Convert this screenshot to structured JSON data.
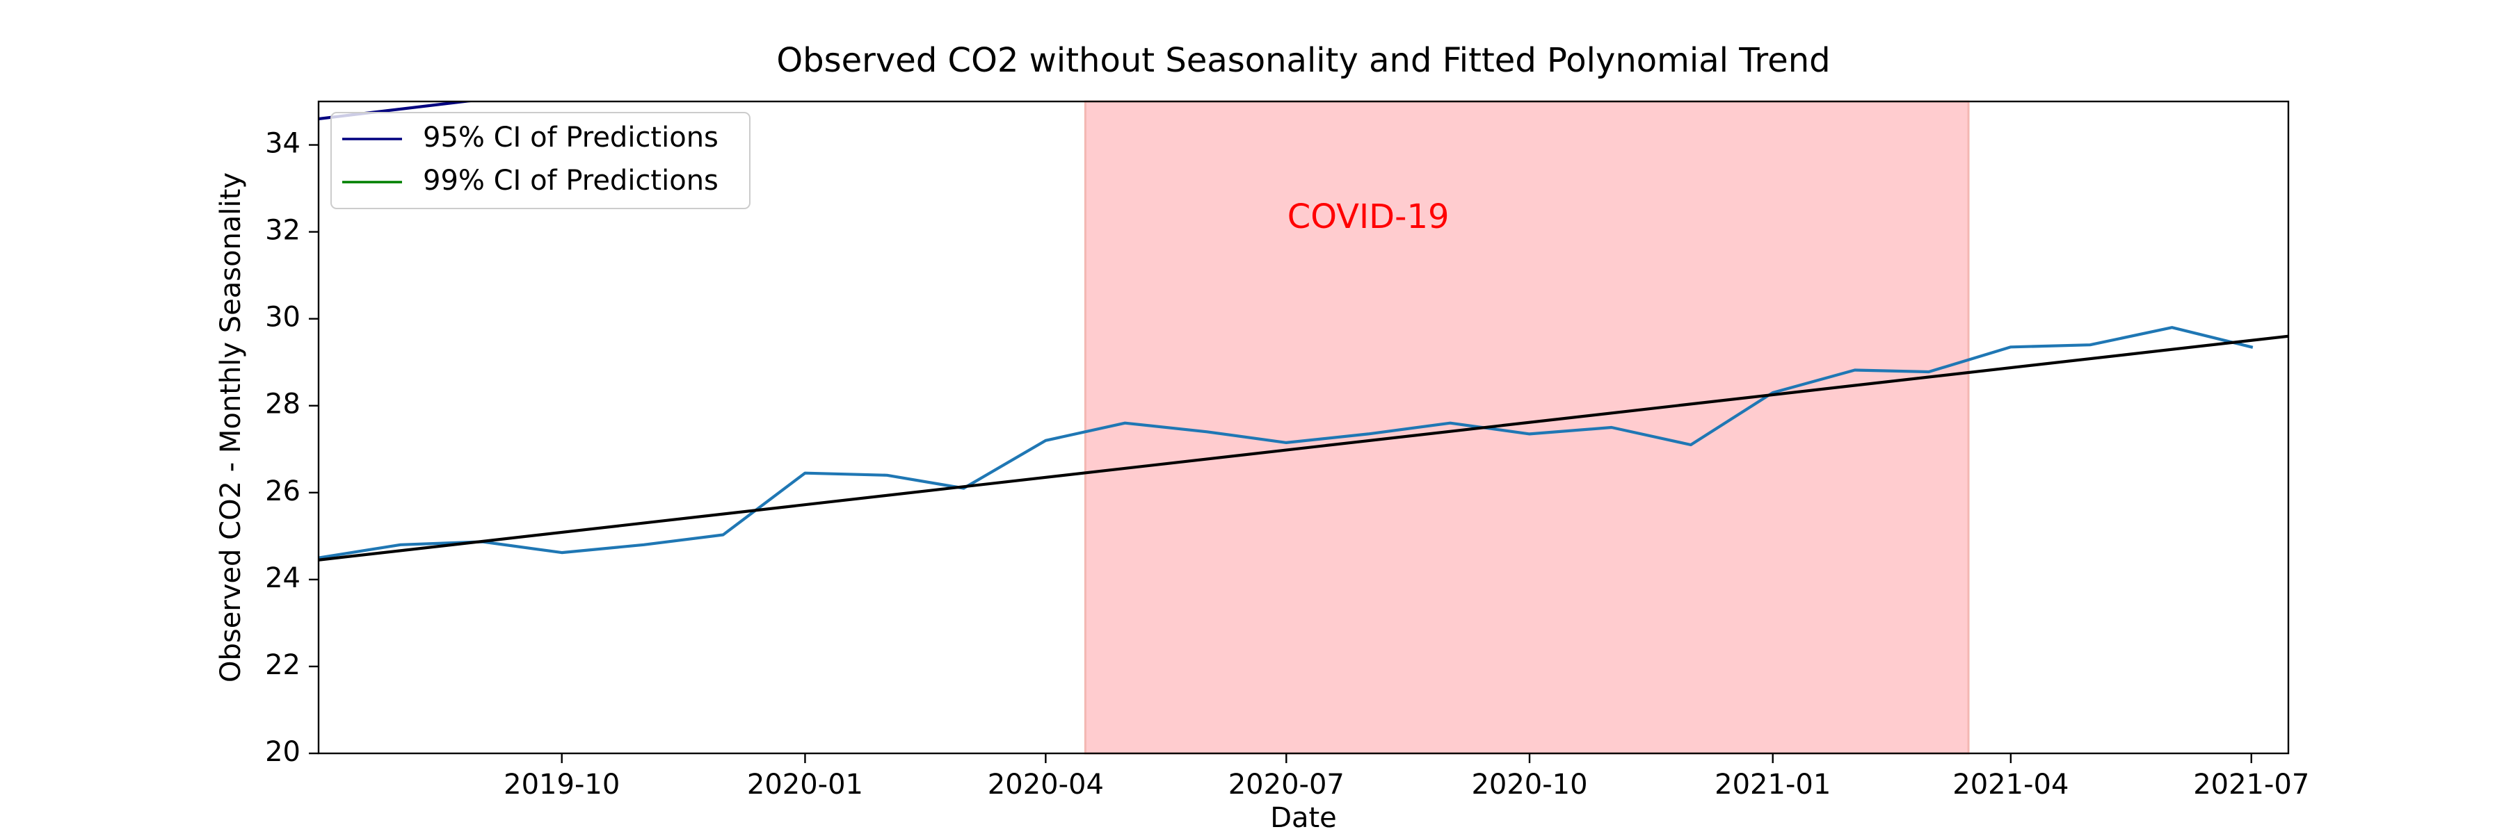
{
  "chart_data": {
    "type": "line",
    "title": "Observed CO2 without Seasonality and Fitted Polynomial Trend",
    "xlabel": "Date",
    "ylabel": "Observed CO2 - Monthly Seasonality",
    "xlim": [
      "2019-07-01",
      "2021-07-15"
    ],
    "ylim": [
      20,
      35
    ],
    "x_ticks": [
      {
        "date": "2019-10-01",
        "label": "2019-10"
      },
      {
        "date": "2020-01-01",
        "label": "2020-01"
      },
      {
        "date": "2020-04-01",
        "label": "2020-04"
      },
      {
        "date": "2020-07-01",
        "label": "2020-07"
      },
      {
        "date": "2020-10-01",
        "label": "2020-10"
      },
      {
        "date": "2021-01-01",
        "label": "2021-01"
      },
      {
        "date": "2021-04-01",
        "label": "2021-04"
      },
      {
        "date": "2021-07-01",
        "label": "2021-07"
      }
    ],
    "y_ticks": [
      20,
      22,
      24,
      26,
      28,
      30,
      32,
      34
    ],
    "grid": false,
    "legend": {
      "placement": "top-left",
      "entries": [
        {
          "label": "95% CI of Predictions",
          "color": "#00007f"
        },
        {
          "label": "99% CI of Predictions",
          "color": "#008000"
        }
      ]
    },
    "shaded_region": {
      "start": "2020-04-16",
      "end": "2021-03-16",
      "color": "#ffcccf",
      "label": "COVID-19",
      "label_color": "#ff0000",
      "label_date": "2020-08-01",
      "label_y": 32.3
    },
    "series": [
      {
        "color": "#1f77b4",
        "x": [
          "2019-07-01",
          "2019-08-01",
          "2019-09-01",
          "2019-10-01",
          "2019-11-01",
          "2019-12-01",
          "2020-01-01",
          "2020-02-01",
          "2020-03-01",
          "2020-04-01",
          "2020-05-01",
          "2020-06-01",
          "2020-07-01",
          "2020-08-01",
          "2020-09-01",
          "2020-10-01",
          "2020-11-01",
          "2020-12-01",
          "2021-01-01",
          "2021-02-01",
          "2021-03-01",
          "2021-04-01",
          "2021-05-01",
          "2021-06-01",
          "2021-07-01"
        ],
        "values": [
          24.5,
          24.8,
          24.87,
          24.62,
          24.8,
          25.03,
          26.45,
          26.4,
          26.1,
          27.2,
          27.6,
          27.4,
          27.15,
          27.35,
          27.6,
          27.35,
          27.5,
          27.1,
          28.3,
          28.82,
          28.78,
          29.35,
          29.4,
          29.8,
          29.35
        ]
      },
      {
        "color": "#000000",
        "x": [
          "2019-07-01",
          "2021-07-15"
        ],
        "values": [
          24.45,
          29.6
        ]
      },
      {
        "color": "#00007f",
        "x": [
          "2019-07-01",
          "2019-09-01"
        ],
        "values": [
          34.6,
          35.05
        ]
      }
    ]
  }
}
